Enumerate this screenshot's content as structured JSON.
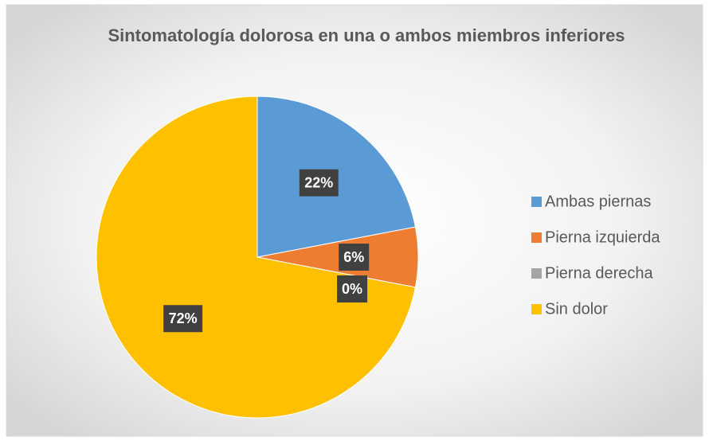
{
  "chart_data": {
    "type": "pie",
    "title": "Sintomatología dolorosa en una o ambos miembros inferiores",
    "categories": [
      "Ambas piernas",
      "Pierna izquierda",
      "Pierna derecha",
      "Sin dolor"
    ],
    "values": [
      22,
      6,
      0,
      72
    ],
    "value_labels": [
      "22%",
      "6%",
      "0%",
      "72%"
    ],
    "colors": [
      "#5b9bd5",
      "#ed7d31",
      "#a5a5a5",
      "#ffc000"
    ],
    "legend": "right"
  }
}
